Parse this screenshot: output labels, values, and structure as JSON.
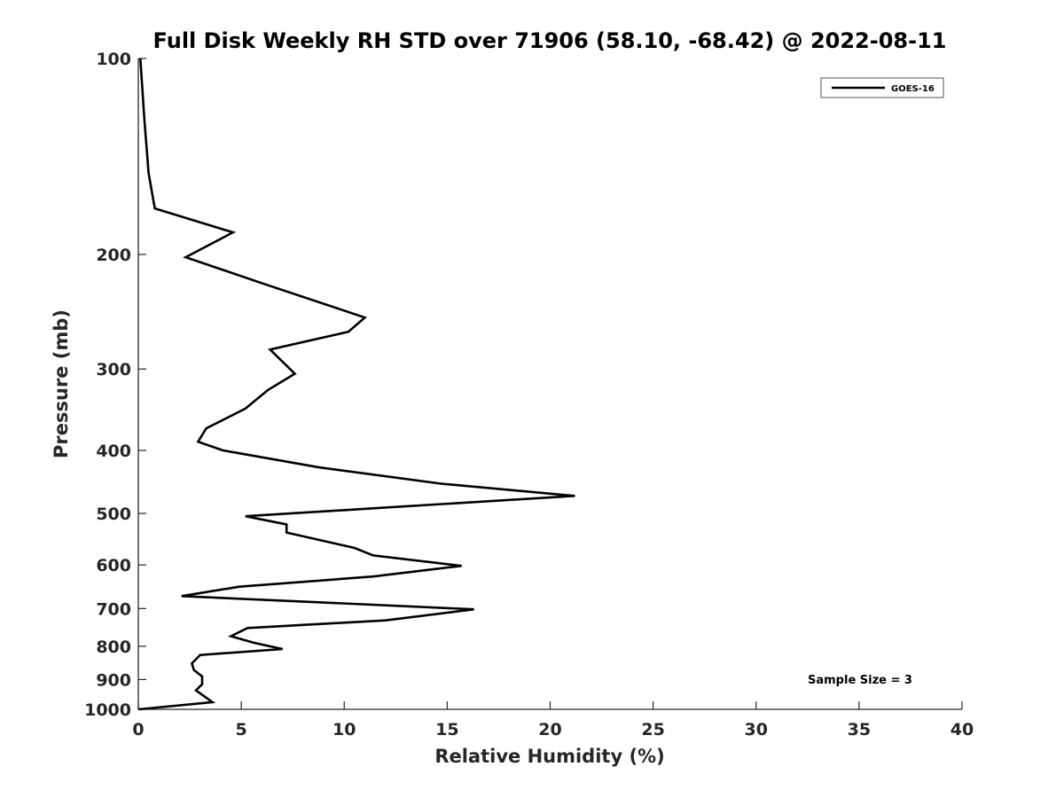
{
  "chart_data": {
    "type": "line",
    "title": "Full Disk Weekly RH STD over 71906 (58.10, -68.42) @ 2022-08-11",
    "xlabel": "Relative Humidity (%)",
    "ylabel": "Pressure (mb)",
    "xlim": [
      0,
      40
    ],
    "ylim": [
      100,
      1000
    ],
    "yscale": "log",
    "y_reversed": true,
    "x_ticks": [
      "0",
      "5",
      "10",
      "15",
      "20",
      "25",
      "30",
      "35",
      "40"
    ],
    "y_ticks": [
      "100",
      "200",
      "300",
      "400",
      "500",
      "600",
      "700",
      "800",
      "900",
      "1000"
    ],
    "grid": false,
    "legend_position": "top-right",
    "annotation": "Sample Size = 3",
    "series": [
      {
        "name": "GOES-16",
        "color": "#000000",
        "x": [
          0.1,
          0.3,
          0.5,
          0.8,
          4.6,
          2.3,
          6.1,
          11.0,
          10.2,
          6.4,
          7.6,
          6.3,
          5.2,
          3.3,
          2.9,
          4.1,
          8.8,
          14.7,
          21.2,
          11.9,
          5.2,
          7.2,
          7.2,
          10.5,
          11.4,
          15.7,
          11.4,
          4.9,
          2.1,
          16.3,
          12.0,
          5.3,
          4.5,
          5.6,
          7.0,
          3.0,
          2.6,
          2.7,
          3.1,
          3.1,
          2.8,
          3.6,
          0.0
        ],
        "y": [
          100,
          125,
          150,
          170,
          185,
          202,
          222,
          250,
          263,
          280,
          305,
          323,
          345,
          370,
          388,
          400,
          425,
          450,
          470,
          490,
          505,
          520,
          535,
          565,
          580,
          602,
          625,
          648,
          670,
          702,
          730,
          750,
          772,
          790,
          808,
          825,
          850,
          870,
          890,
          915,
          935,
          975,
          1000
        ]
      }
    ]
  }
}
